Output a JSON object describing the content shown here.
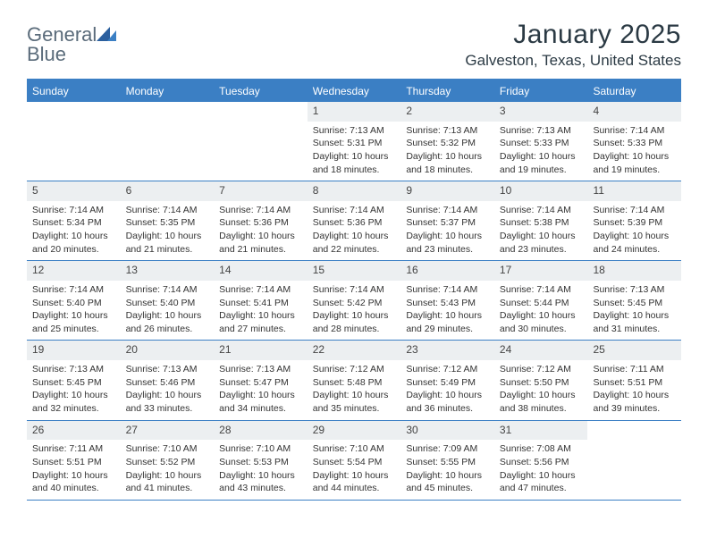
{
  "logo": {
    "text1": "General",
    "text2": "Blue"
  },
  "title": "January 2025",
  "location": "Galveston, Texas, United States",
  "colors": {
    "header_bar": "#3b7fc4",
    "daynum_bg": "#eceff1",
    "text": "#2b3a44",
    "logo_gray": "#5a6b7a",
    "logo_blue": "#3b7fc4"
  },
  "day_names": [
    "Sunday",
    "Monday",
    "Tuesday",
    "Wednesday",
    "Thursday",
    "Friday",
    "Saturday"
  ],
  "weeks": [
    [
      {
        "empty": true
      },
      {
        "empty": true
      },
      {
        "empty": true
      },
      {
        "day": "1",
        "sunrise": "Sunrise: 7:13 AM",
        "sunset": "Sunset: 5:31 PM",
        "dl1": "Daylight: 10 hours",
        "dl2": "and 18 minutes."
      },
      {
        "day": "2",
        "sunrise": "Sunrise: 7:13 AM",
        "sunset": "Sunset: 5:32 PM",
        "dl1": "Daylight: 10 hours",
        "dl2": "and 18 minutes."
      },
      {
        "day": "3",
        "sunrise": "Sunrise: 7:13 AM",
        "sunset": "Sunset: 5:33 PM",
        "dl1": "Daylight: 10 hours",
        "dl2": "and 19 minutes."
      },
      {
        "day": "4",
        "sunrise": "Sunrise: 7:14 AM",
        "sunset": "Sunset: 5:33 PM",
        "dl1": "Daylight: 10 hours",
        "dl2": "and 19 minutes."
      }
    ],
    [
      {
        "day": "5",
        "sunrise": "Sunrise: 7:14 AM",
        "sunset": "Sunset: 5:34 PM",
        "dl1": "Daylight: 10 hours",
        "dl2": "and 20 minutes."
      },
      {
        "day": "6",
        "sunrise": "Sunrise: 7:14 AM",
        "sunset": "Sunset: 5:35 PM",
        "dl1": "Daylight: 10 hours",
        "dl2": "and 21 minutes."
      },
      {
        "day": "7",
        "sunrise": "Sunrise: 7:14 AM",
        "sunset": "Sunset: 5:36 PM",
        "dl1": "Daylight: 10 hours",
        "dl2": "and 21 minutes."
      },
      {
        "day": "8",
        "sunrise": "Sunrise: 7:14 AM",
        "sunset": "Sunset: 5:36 PM",
        "dl1": "Daylight: 10 hours",
        "dl2": "and 22 minutes."
      },
      {
        "day": "9",
        "sunrise": "Sunrise: 7:14 AM",
        "sunset": "Sunset: 5:37 PM",
        "dl1": "Daylight: 10 hours",
        "dl2": "and 23 minutes."
      },
      {
        "day": "10",
        "sunrise": "Sunrise: 7:14 AM",
        "sunset": "Sunset: 5:38 PM",
        "dl1": "Daylight: 10 hours",
        "dl2": "and 23 minutes."
      },
      {
        "day": "11",
        "sunrise": "Sunrise: 7:14 AM",
        "sunset": "Sunset: 5:39 PM",
        "dl1": "Daylight: 10 hours",
        "dl2": "and 24 minutes."
      }
    ],
    [
      {
        "day": "12",
        "sunrise": "Sunrise: 7:14 AM",
        "sunset": "Sunset: 5:40 PM",
        "dl1": "Daylight: 10 hours",
        "dl2": "and 25 minutes."
      },
      {
        "day": "13",
        "sunrise": "Sunrise: 7:14 AM",
        "sunset": "Sunset: 5:40 PM",
        "dl1": "Daylight: 10 hours",
        "dl2": "and 26 minutes."
      },
      {
        "day": "14",
        "sunrise": "Sunrise: 7:14 AM",
        "sunset": "Sunset: 5:41 PM",
        "dl1": "Daylight: 10 hours",
        "dl2": "and 27 minutes."
      },
      {
        "day": "15",
        "sunrise": "Sunrise: 7:14 AM",
        "sunset": "Sunset: 5:42 PM",
        "dl1": "Daylight: 10 hours",
        "dl2": "and 28 minutes."
      },
      {
        "day": "16",
        "sunrise": "Sunrise: 7:14 AM",
        "sunset": "Sunset: 5:43 PM",
        "dl1": "Daylight: 10 hours",
        "dl2": "and 29 minutes."
      },
      {
        "day": "17",
        "sunrise": "Sunrise: 7:14 AM",
        "sunset": "Sunset: 5:44 PM",
        "dl1": "Daylight: 10 hours",
        "dl2": "and 30 minutes."
      },
      {
        "day": "18",
        "sunrise": "Sunrise: 7:13 AM",
        "sunset": "Sunset: 5:45 PM",
        "dl1": "Daylight: 10 hours",
        "dl2": "and 31 minutes."
      }
    ],
    [
      {
        "day": "19",
        "sunrise": "Sunrise: 7:13 AM",
        "sunset": "Sunset: 5:45 PM",
        "dl1": "Daylight: 10 hours",
        "dl2": "and 32 minutes."
      },
      {
        "day": "20",
        "sunrise": "Sunrise: 7:13 AM",
        "sunset": "Sunset: 5:46 PM",
        "dl1": "Daylight: 10 hours",
        "dl2": "and 33 minutes."
      },
      {
        "day": "21",
        "sunrise": "Sunrise: 7:13 AM",
        "sunset": "Sunset: 5:47 PM",
        "dl1": "Daylight: 10 hours",
        "dl2": "and 34 minutes."
      },
      {
        "day": "22",
        "sunrise": "Sunrise: 7:12 AM",
        "sunset": "Sunset: 5:48 PM",
        "dl1": "Daylight: 10 hours",
        "dl2": "and 35 minutes."
      },
      {
        "day": "23",
        "sunrise": "Sunrise: 7:12 AM",
        "sunset": "Sunset: 5:49 PM",
        "dl1": "Daylight: 10 hours",
        "dl2": "and 36 minutes."
      },
      {
        "day": "24",
        "sunrise": "Sunrise: 7:12 AM",
        "sunset": "Sunset: 5:50 PM",
        "dl1": "Daylight: 10 hours",
        "dl2": "and 38 minutes."
      },
      {
        "day": "25",
        "sunrise": "Sunrise: 7:11 AM",
        "sunset": "Sunset: 5:51 PM",
        "dl1": "Daylight: 10 hours",
        "dl2": "and 39 minutes."
      }
    ],
    [
      {
        "day": "26",
        "sunrise": "Sunrise: 7:11 AM",
        "sunset": "Sunset: 5:51 PM",
        "dl1": "Daylight: 10 hours",
        "dl2": "and 40 minutes."
      },
      {
        "day": "27",
        "sunrise": "Sunrise: 7:10 AM",
        "sunset": "Sunset: 5:52 PM",
        "dl1": "Daylight: 10 hours",
        "dl2": "and 41 minutes."
      },
      {
        "day": "28",
        "sunrise": "Sunrise: 7:10 AM",
        "sunset": "Sunset: 5:53 PM",
        "dl1": "Daylight: 10 hours",
        "dl2": "and 43 minutes."
      },
      {
        "day": "29",
        "sunrise": "Sunrise: 7:10 AM",
        "sunset": "Sunset: 5:54 PM",
        "dl1": "Daylight: 10 hours",
        "dl2": "and 44 minutes."
      },
      {
        "day": "30",
        "sunrise": "Sunrise: 7:09 AM",
        "sunset": "Sunset: 5:55 PM",
        "dl1": "Daylight: 10 hours",
        "dl2": "and 45 minutes."
      },
      {
        "day": "31",
        "sunrise": "Sunrise: 7:08 AM",
        "sunset": "Sunset: 5:56 PM",
        "dl1": "Daylight: 10 hours",
        "dl2": "and 47 minutes."
      },
      {
        "empty": true
      }
    ]
  ]
}
